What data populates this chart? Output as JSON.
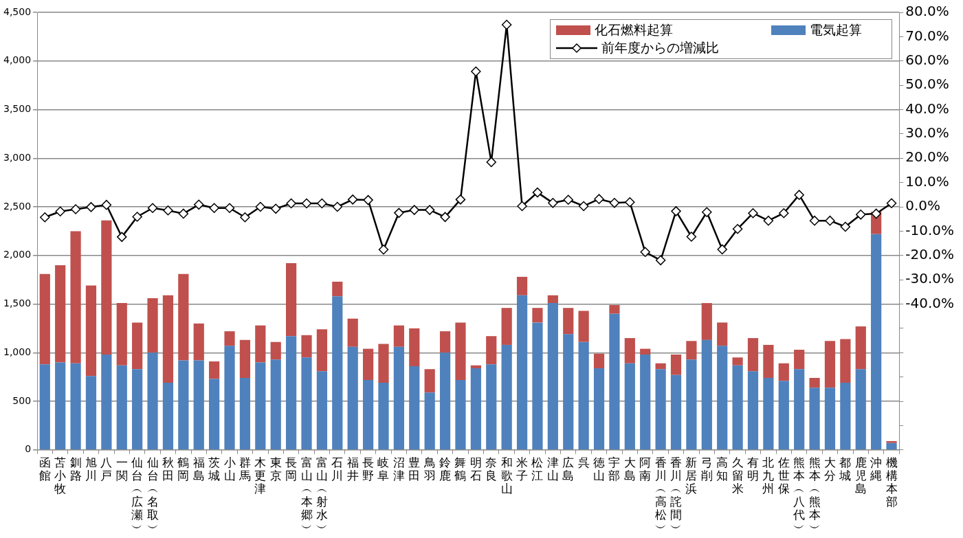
{
  "chart_data": {
    "type": "bar",
    "stacked": true,
    "categories": [
      "函館",
      "苫小牧",
      "釧路",
      "旭川",
      "八戸",
      "一関",
      "仙台︵広瀬︶",
      "仙台︵名取︶",
      "秋田",
      "鶴岡",
      "福島",
      "茨城",
      "小山",
      "群馬",
      "木更津",
      "東京",
      "長岡",
      "富山︵本郷︶",
      "富山︵射水︶",
      "石川",
      "福井",
      "長野",
      "岐阜",
      "沼津",
      "豊田",
      "鳥羽",
      "鈴鹿",
      "舞鶴",
      "明石",
      "奈良",
      "和歌山",
      "米子",
      "松江",
      "津山",
      "広島",
      "呉",
      "徳山",
      "宇部",
      "大島",
      "阿南",
      "香川︵高松︶",
      "香川︵詫間︶",
      "新居浜",
      "弓削",
      "高知",
      "久留米",
      "有明",
      "北九州",
      "佐世保",
      "熊本︵八代︶",
      "熊本︵熊本︶",
      "大分",
      "都城",
      "鹿児島",
      "沖縄",
      "機構本部"
    ],
    "series": [
      {
        "name": "電気起算",
        "color": "#4f81bd",
        "values": [
          880,
          900,
          890,
          760,
          980,
          870,
          830,
          1000,
          690,
          920,
          920,
          730,
          1070,
          740,
          900,
          930,
          1170,
          950,
          810,
          1580,
          1060,
          720,
          690,
          1060,
          860,
          590,
          1000,
          720,
          840,
          880,
          1080,
          1590,
          1310,
          1510,
          1190,
          1110,
          840,
          1400,
          890,
          980,
          830,
          770,
          930,
          1130,
          1070,
          870,
          810,
          740,
          710,
          830,
          640,
          640,
          690,
          830,
          2220,
          70
        ]
      },
      {
        "name": "化石燃料起算",
        "color": "#c0504d",
        "values": [
          930,
          1000,
          1360,
          930,
          1380,
          640,
          480,
          560,
          900,
          890,
          380,
          180,
          150,
          390,
          380,
          180,
          750,
          230,
          430,
          150,
          290,
          320,
          400,
          220,
          390,
          240,
          220,
          590,
          30,
          290,
          380,
          190,
          150,
          80,
          270,
          320,
          150,
          90,
          260,
          60,
          60,
          210,
          190,
          380,
          240,
          80,
          340,
          340,
          180,
          200,
          100,
          480,
          450,
          440,
          230,
          20
        ]
      },
      {
        "name": "前年度からの増減比",
        "type": "line",
        "axis": "y2",
        "color": "#000000",
        "marker": "diamond",
        "line_style": "solid",
        "values": [
          -4.3,
          -1.9,
          -1.0,
          -0.1,
          0.8,
          -12.4,
          -4.1,
          -0.5,
          -1.5,
          -2.8,
          0.9,
          -0.5,
          -0.5,
          -4.3,
          0,
          -0.8,
          1.4,
          1.4,
          1.4,
          0,
          3.0,
          2.8,
          -17.6,
          -2.5,
          -1.3,
          -1.3,
          -4.2,
          3.0,
          55.7,
          18.4,
          74.9,
          0.3,
          5.9,
          1.6,
          2.9,
          0.3,
          3.2,
          1.6,
          1.9,
          -18.6,
          -22.0,
          -1.8,
          -12.3,
          -2.2,
          -17.5,
          -9.1,
          -2.6,
          -5.7,
          -2.6,
          4.9,
          -5.7,
          -5.7,
          -8.2,
          -3.2,
          -2.8,
          1.5
        ]
      }
    ],
    "ylim": [
      0,
      4500
    ],
    "yticks": [
      0,
      {
        "value": 500,
        "label": "500"
      },
      {
        "value": 1000,
        "label": "1,000"
      },
      {
        "value": 1500,
        "label": "1,500"
      },
      {
        "value": 2000,
        "label": "2,000"
      },
      {
        "value": 2500,
        "label": "2,500"
      },
      {
        "value": 3000,
        "label": "3,000"
      },
      {
        "value": 3500,
        "label": "3,500"
      },
      {
        "value": 4000,
        "label": "4,000"
      },
      {
        "value": 4500,
        "label": "4,500"
      }
    ],
    "y2lim": [
      -100,
      80
    ],
    "y2ticks": [
      {
        "value": 80,
        "label": "80.0%"
      },
      {
        "value": 70,
        "label": "70.0%"
      },
      {
        "value": 60,
        "label": "60.0%"
      },
      {
        "value": 50,
        "label": "50.0%"
      },
      {
        "value": 40,
        "label": "40.0%"
      },
      {
        "value": 30,
        "label": "30.0%"
      },
      {
        "value": 20,
        "label": "20.0%"
      },
      {
        "value": 10,
        "label": "10.0%"
      },
      {
        "value": 0,
        "label": "0.0%"
      },
      {
        "value": -10,
        "label": "-10.0%"
      },
      {
        "value": -20,
        "label": "-20.0%"
      },
      {
        "value": -30,
        "label": "-30.0%"
      },
      {
        "value": -40,
        "label": "-40.0%"
      },
      {
        "value": -50,
        "label": null
      },
      {
        "value": -60,
        "label": null
      },
      {
        "value": -70,
        "label": null
      },
      {
        "value": -80,
        "label": null
      },
      {
        "value": -90,
        "label": null
      },
      {
        "value": -100,
        "label": null
      }
    ],
    "grid": "y",
    "legend": "top right"
  }
}
